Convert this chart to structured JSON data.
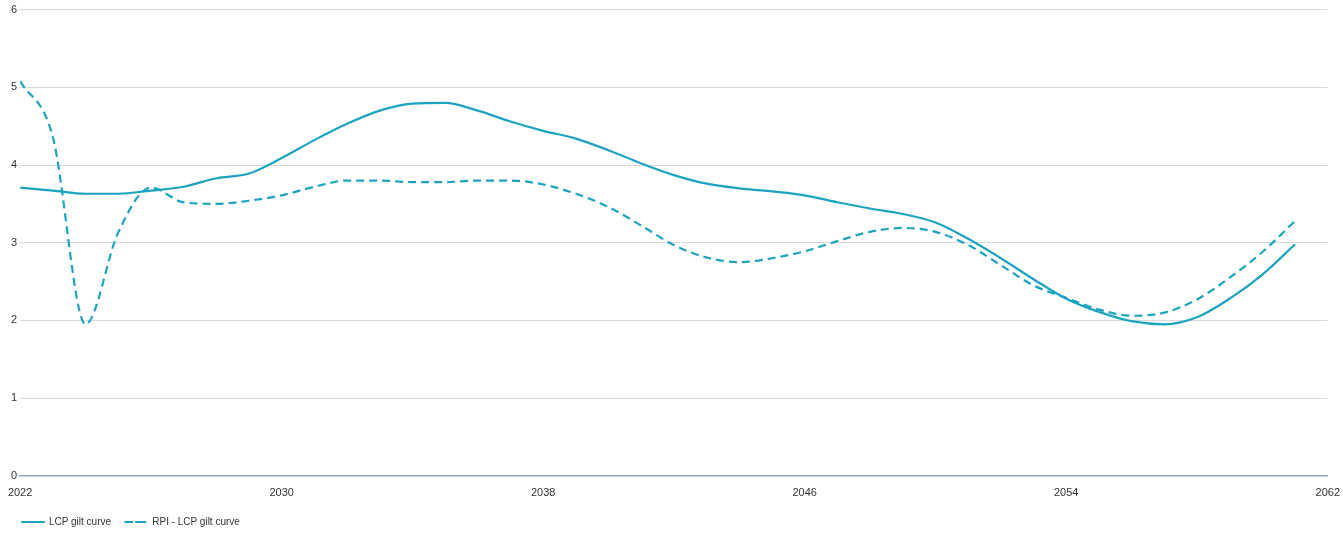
{
  "chart_data": {
    "type": "line",
    "x": [
      2022,
      2023,
      2024,
      2025,
      2026,
      2027,
      2028,
      2029,
      2030,
      2031,
      2032,
      2033,
      2034,
      2035,
      2036,
      2037,
      2038,
      2039,
      2040,
      2041,
      2042,
      2043,
      2044,
      2045,
      2046,
      2047,
      2048,
      2049,
      2050,
      2051,
      2052,
      2053,
      2054,
      2055,
      2056,
      2057,
      2058,
      2059,
      2060,
      2061
    ],
    "series": [
      {
        "name": "LCP gilt curve",
        "color": "#1ba3c0",
        "line_style": "solid",
        "values": [
          3.71,
          3.67,
          3.63,
          3.63,
          3.67,
          3.72,
          3.83,
          3.89,
          4.09,
          4.32,
          4.53,
          4.7,
          4.79,
          4.8,
          4.7,
          4.56,
          4.44,
          4.34,
          4.19,
          4.02,
          3.87,
          3.76,
          3.7,
          3.66,
          3.61,
          3.52,
          3.44,
          3.37,
          3.26,
          3.05,
          2.8,
          2.53,
          2.28,
          2.11,
          1.99,
          1.95,
          2.04,
          2.28,
          2.59,
          2.98
        ]
      },
      {
        "name": "RPI - LCP gilt curve",
        "color": "#1ba3c0",
        "line_style": "dashed",
        "values": [
          5.08,
          4.36,
          1.95,
          3.13,
          3.71,
          3.52,
          3.5,
          3.54,
          3.61,
          3.72,
          3.8,
          3.8,
          3.78,
          3.78,
          3.8,
          3.8,
          3.75,
          3.63,
          3.46,
          3.22,
          2.97,
          2.81,
          2.75,
          2.8,
          2.89,
          3.02,
          3.14,
          3.19,
          3.14,
          2.97,
          2.71,
          2.45,
          2.29,
          2.14,
          2.06,
          2.1,
          2.27,
          2.55,
          2.88,
          3.28
        ]
      }
    ],
    "xlim": [
      2022,
      2062
    ],
    "xticks": [
      2022,
      2030,
      2038,
      2046,
      2054,
      2062
    ],
    "ylim": [
      0,
      6
    ],
    "yticks": [
      0,
      1,
      2,
      3,
      4,
      5,
      6
    ],
    "grid": "y",
    "legend": "bottom left",
    "marker": "none"
  }
}
